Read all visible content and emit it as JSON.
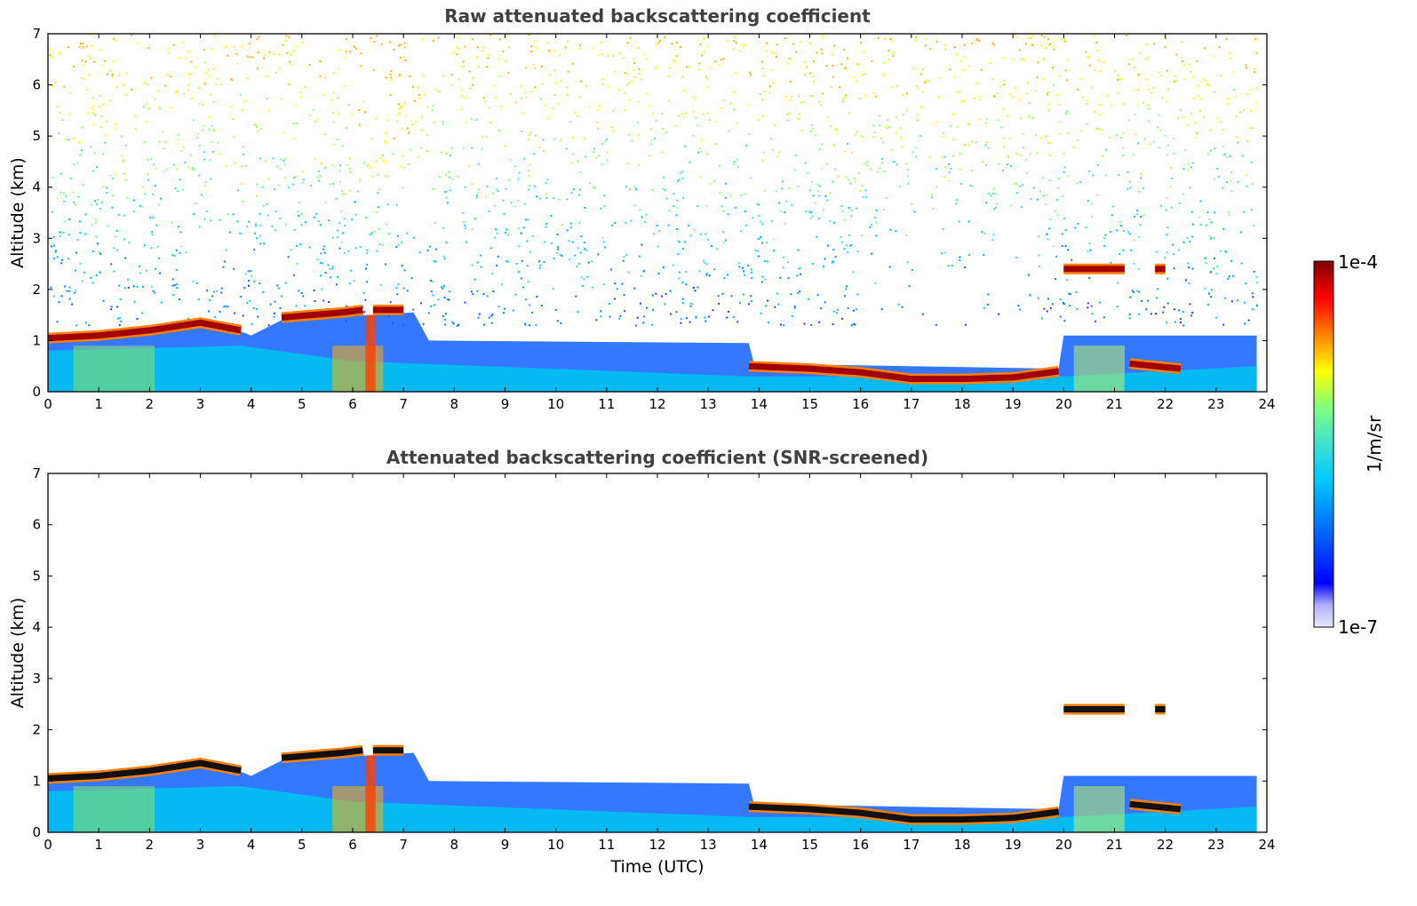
{
  "chart_data": [
    {
      "type": "heatmap",
      "title": "Raw attenuated backscattering coefficient",
      "xlabel": "",
      "ylabel": "Altitude (km)",
      "xlim": [
        0,
        24
      ],
      "ylim": [
        0,
        7
      ],
      "xticks": [
        0,
        1,
        2,
        3,
        4,
        5,
        6,
        7,
        8,
        9,
        10,
        11,
        12,
        13,
        14,
        15,
        16,
        17,
        18,
        19,
        20,
        21,
        22,
        23,
        24
      ],
      "yticks": [
        0,
        1,
        2,
        3,
        4,
        5,
        6,
        7
      ],
      "noise": "high",
      "layers": [
        {
          "x": [
            0,
            1,
            2,
            3,
            3.8
          ],
          "y": [
            1.05,
            1.1,
            1.2,
            1.35,
            1.2
          ]
        },
        {
          "x": [
            4.6,
            5.2,
            5.8,
            6.2
          ],
          "y": [
            1.45,
            1.5,
            1.55,
            1.6
          ]
        },
        {
          "x": [
            6.4,
            7.0
          ],
          "y": [
            1.6,
            1.6
          ]
        },
        {
          "x": [
            13.8,
            15,
            16,
            17,
            18,
            19,
            19.9
          ],
          "y": [
            0.5,
            0.45,
            0.38,
            0.25,
            0.25,
            0.28,
            0.4
          ]
        },
        {
          "x": [
            20.0,
            21.2
          ],
          "y": [
            2.4,
            2.4
          ]
        },
        {
          "x": [
            21.8,
            22.0
          ],
          "y": [
            2.4,
            2.4
          ]
        },
        {
          "x": [
            21.3,
            22.3
          ],
          "y": [
            0.55,
            0.45
          ]
        }
      ]
    },
    {
      "type": "heatmap",
      "title": "Attenuated backscattering coefficient (SNR-screened)",
      "xlabel": "Time (UTC)",
      "ylabel": "Altitude (km)",
      "xlim": [
        0,
        24
      ],
      "ylim": [
        0,
        7
      ],
      "xticks": [
        0,
        1,
        2,
        3,
        4,
        5,
        6,
        7,
        8,
        9,
        10,
        11,
        12,
        13,
        14,
        15,
        16,
        17,
        18,
        19,
        20,
        21,
        22,
        23,
        24
      ],
      "yticks": [
        0,
        1,
        2,
        3,
        4,
        5,
        6,
        7
      ],
      "noise": "screened",
      "layers": [
        {
          "x": [
            0,
            1,
            2,
            3,
            3.8
          ],
          "y": [
            1.05,
            1.1,
            1.2,
            1.35,
            1.2
          ]
        },
        {
          "x": [
            4.6,
            5.2,
            5.8,
            6.2
          ],
          "y": [
            1.45,
            1.5,
            1.55,
            1.6
          ]
        },
        {
          "x": [
            6.4,
            7.0
          ],
          "y": [
            1.6,
            1.6
          ]
        },
        {
          "x": [
            13.8,
            15,
            16,
            17,
            18,
            19,
            19.9
          ],
          "y": [
            0.5,
            0.45,
            0.38,
            0.25,
            0.25,
            0.28,
            0.4
          ]
        },
        {
          "x": [
            20.0,
            21.2
          ],
          "y": [
            2.4,
            2.4
          ]
        },
        {
          "x": [
            21.8,
            22.0
          ],
          "y": [
            2.4,
            2.4
          ]
        },
        {
          "x": [
            21.3,
            22.3
          ],
          "y": [
            0.55,
            0.45
          ]
        }
      ]
    }
  ],
  "colorbar": {
    "label": "1/m/sr",
    "max_label": "1e-4",
    "min_label": "1e-7",
    "colors": [
      "#e8e8ff",
      "#b0b0ff",
      "#0000ff",
      "#0060ff",
      "#00c8ff",
      "#40e0d0",
      "#80ff80",
      "#ffff00",
      "#ff8000",
      "#ff0000",
      "#800000"
    ]
  }
}
